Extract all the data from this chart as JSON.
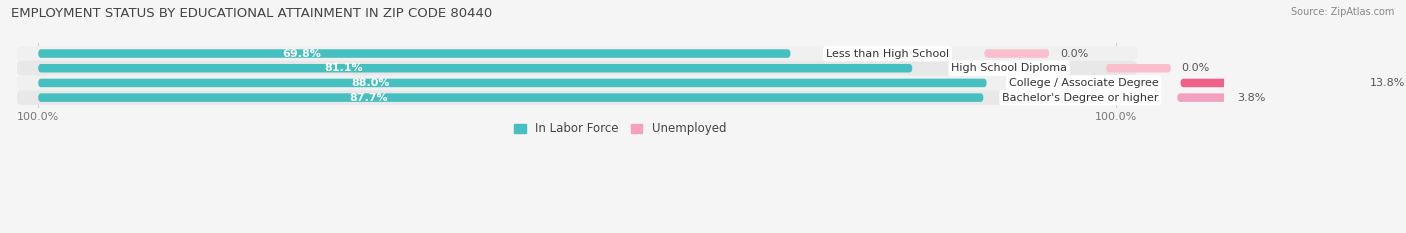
{
  "title": "EMPLOYMENT STATUS BY EDUCATIONAL ATTAINMENT IN ZIP CODE 80440",
  "source": "Source: ZipAtlas.com",
  "categories": [
    "Less than High School",
    "High School Diploma",
    "College / Associate Degree",
    "Bachelor's Degree or higher"
  ],
  "labor_force": [
    69.8,
    81.1,
    88.0,
    87.7
  ],
  "unemployed": [
    0.0,
    0.0,
    13.8,
    3.8
  ],
  "labor_force_color": "#45bfbf",
  "unemployed_colors": [
    "#f9bfcf",
    "#f9bfcf",
    "#f0608a",
    "#f4a0c0"
  ],
  "row_bg_colors": [
    "#f0f0f0",
    "#e8e8e8"
  ],
  "title_fontsize": 9.5,
  "label_fontsize": 8.0,
  "cat_fontsize": 8.0,
  "axis_label_fontsize": 8.0,
  "legend_fontsize": 8.5,
  "background_color": "#f5f5f5"
}
